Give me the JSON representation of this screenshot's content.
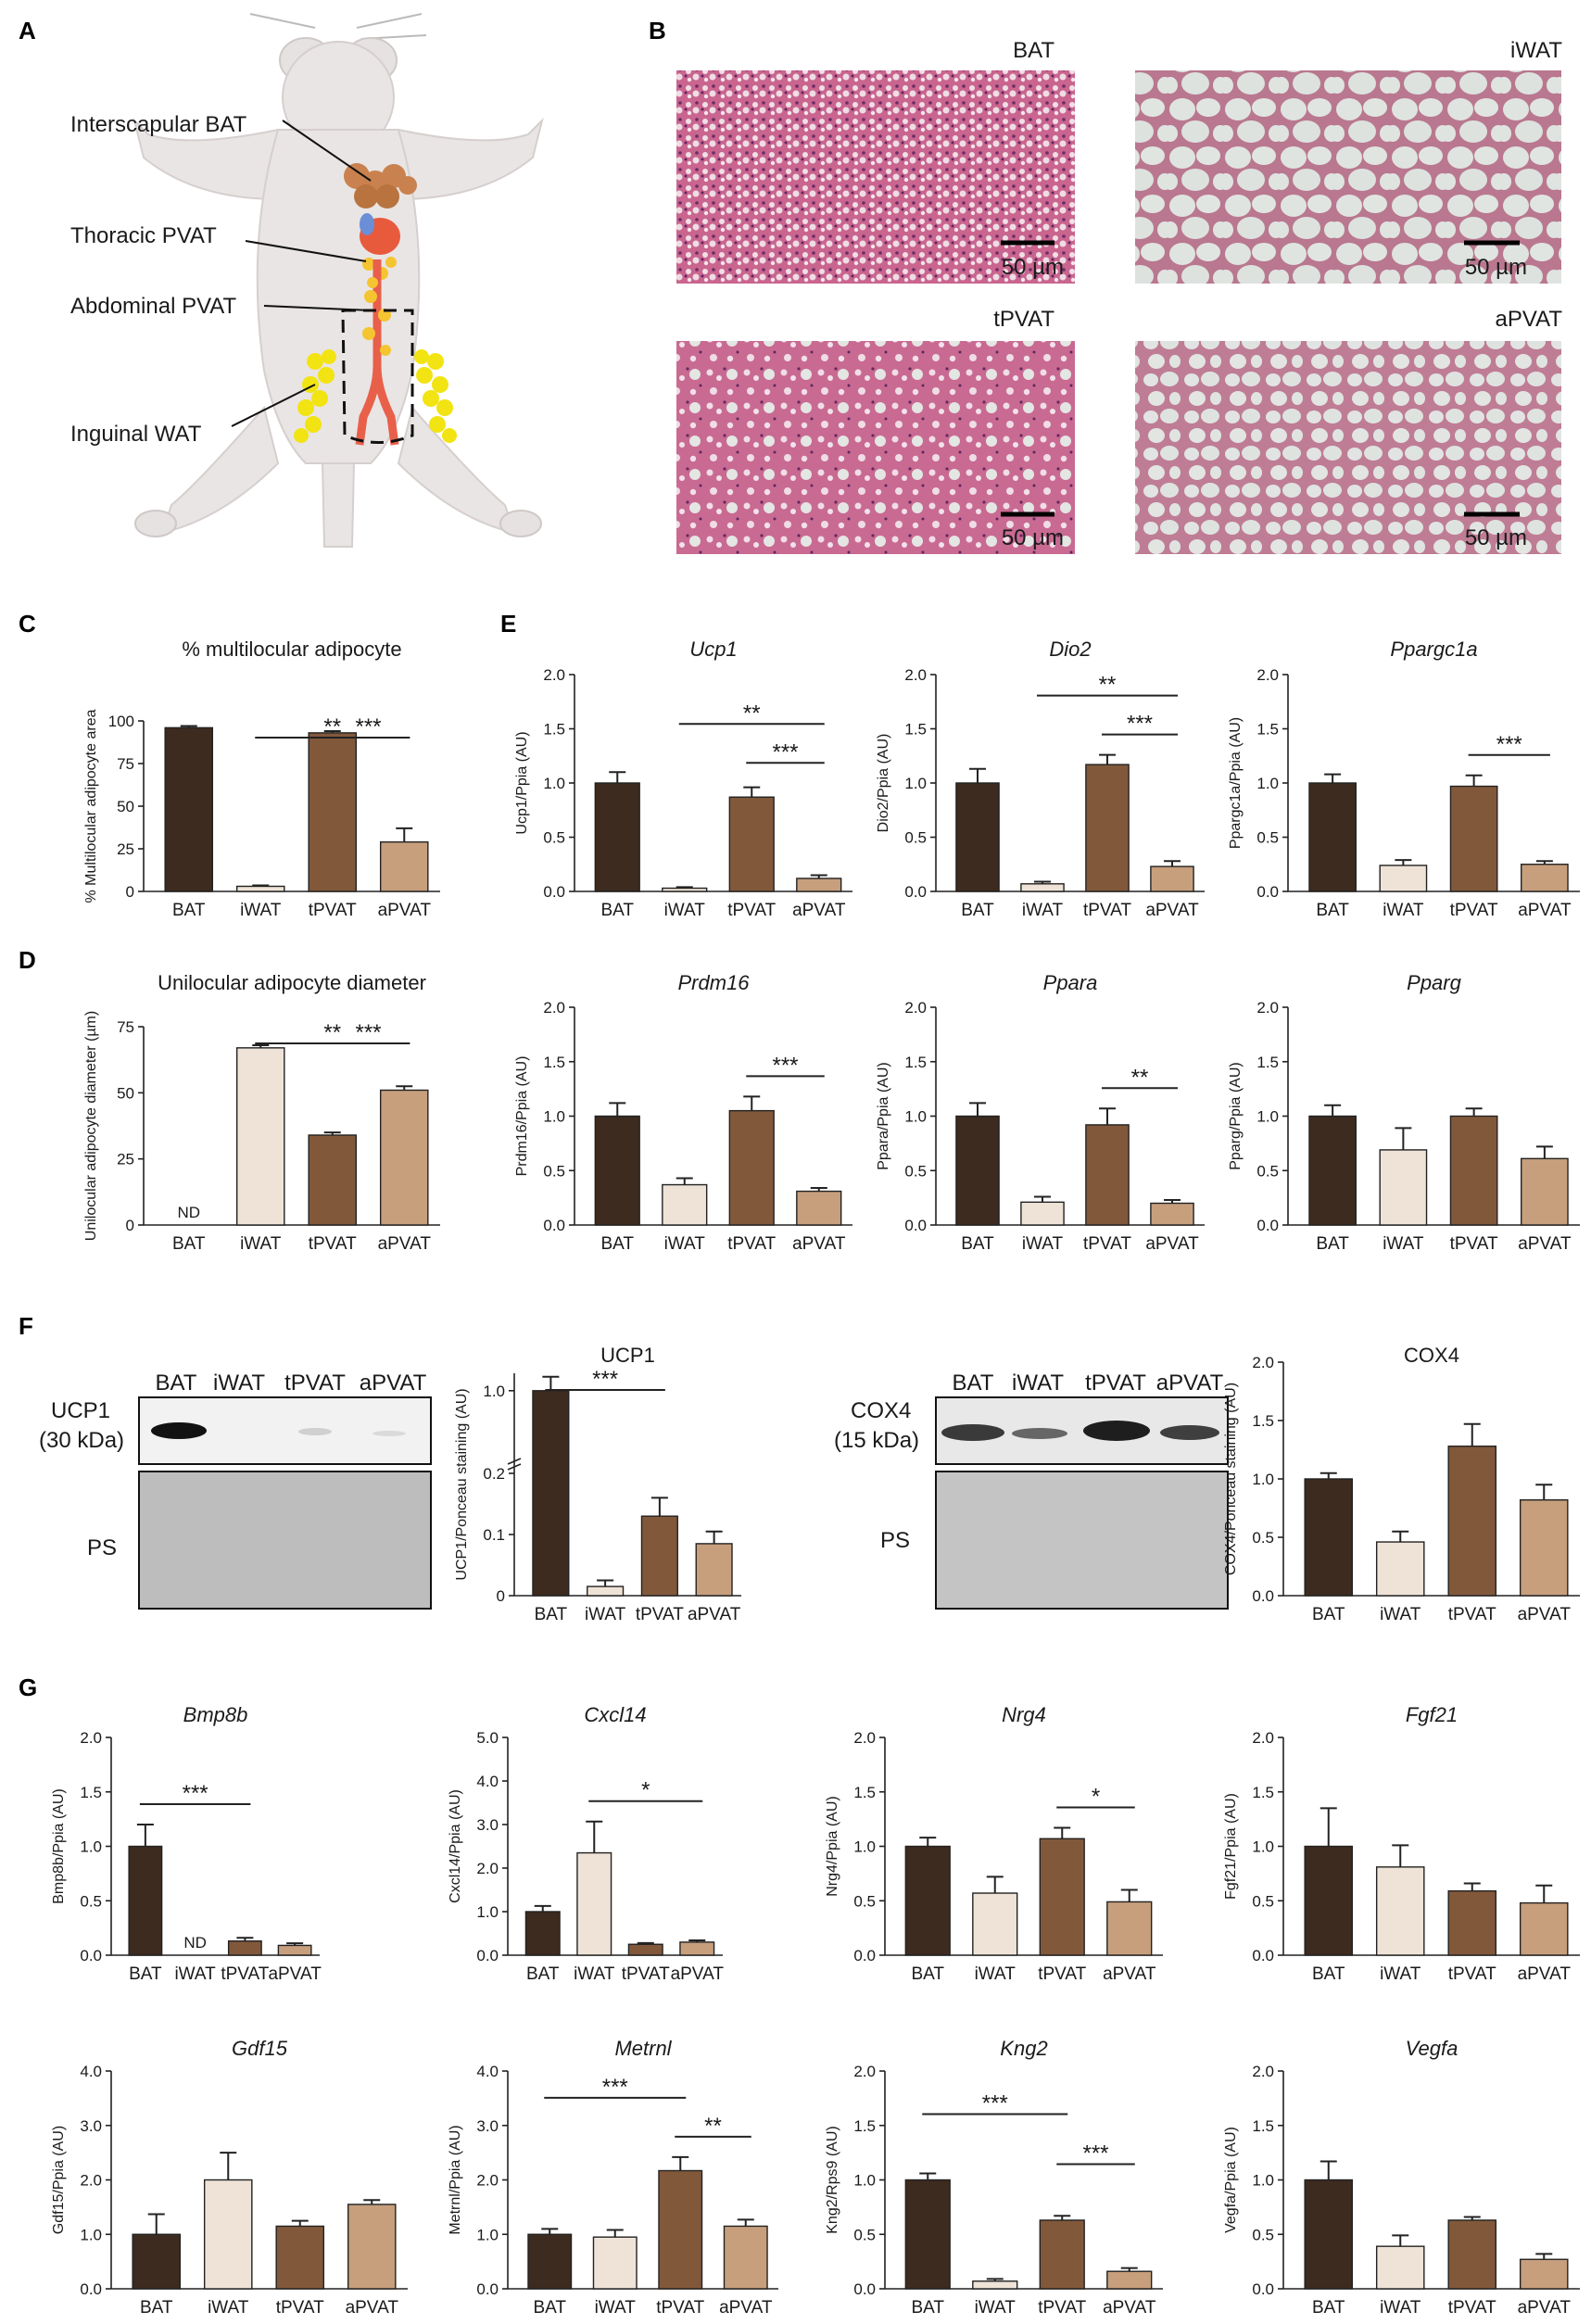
{
  "colors": {
    "BAT": "#3d2b1f",
    "iWAT": "#efe3d7",
    "tPVAT": "#82583b",
    "aPVAT": "#c79f7d"
  },
  "categories": [
    "BAT",
    "iWAT",
    "tPVAT",
    "aPVAT"
  ],
  "panels": {
    "A": {
      "letter": "A",
      "labels": [
        "Interscapular BAT",
        "Thoracic PVAT",
        "Abdominal PVAT",
        "Inguinal WAT"
      ]
    },
    "B": {
      "letter": "B",
      "images": [
        {
          "label": "BAT",
          "scale": "50 µm"
        },
        {
          "label": "iWAT",
          "scale": "50 µm"
        },
        {
          "label": "tPVAT",
          "scale": "50 µm"
        },
        {
          "label": "aPVAT",
          "scale": "50 µm"
        }
      ]
    },
    "C": {
      "letter": "C"
    },
    "D": {
      "letter": "D"
    },
    "E": {
      "letter": "E"
    },
    "F": {
      "letter": "F",
      "blot1": {
        "lanes": [
          "BAT",
          "iWAT",
          "tPVAT",
          "aPVAT"
        ],
        "protein": "UCP1",
        "kda": "(30 kDa)",
        "ps": "PS"
      },
      "blot2": {
        "lanes": [
          "BAT",
          "iWAT",
          "tPVAT",
          "aPVAT"
        ],
        "protein": "COX4",
        "kda": "(15 kDa)",
        "ps": "PS"
      }
    },
    "G": {
      "letter": "G"
    }
  },
  "chart_data": [
    {
      "id": "C",
      "type": "bar",
      "title": "% multilocular adipocyte",
      "title_italic": false,
      "ylabel": "% Multilocular adipocyte area",
      "ylim": [
        0,
        100
      ],
      "yticks": [
        0,
        25,
        50,
        75,
        100
      ],
      "ytick_labels": [
        "0",
        "25",
        "50",
        "75",
        "100"
      ],
      "categories": [
        "BAT",
        "iWAT",
        "tPVAT",
        "aPVAT"
      ],
      "values": [
        96,
        3,
        93,
        29
      ],
      "errors": [
        1,
        0.5,
        1,
        8
      ],
      "nd": [],
      "sig": [
        {
          "from": 1,
          "to": 3,
          "label": "**"
        },
        {
          "from": 2,
          "to": 3,
          "label": "***"
        }
      ]
    },
    {
      "id": "D",
      "type": "bar",
      "title": "Unilocular adipocyte diameter",
      "title_italic": false,
      "ylabel": "Unilocular adipocyte diameter (µm)",
      "ylim": [
        0,
        75
      ],
      "yticks": [
        0,
        25,
        50,
        75
      ],
      "ytick_labels": [
        "0",
        "25",
        "50",
        "75"
      ],
      "categories": [
        "BAT",
        "iWAT",
        "tPVAT",
        "aPVAT"
      ],
      "values": [
        0,
        67,
        34,
        51
      ],
      "errors": [
        0,
        1,
        1,
        1.5
      ],
      "nd": [
        0
      ],
      "nd_label": "ND",
      "sig": [
        {
          "from": 1,
          "to": 3,
          "label": "**"
        },
        {
          "from": 2,
          "to": 3,
          "label": "***"
        }
      ]
    },
    {
      "id": "E1",
      "type": "bar",
      "title": "Ucp1",
      "title_italic": true,
      "ylabel": "Ucp1/Ppia (AU)",
      "ylim": [
        0,
        2
      ],
      "yticks": [
        0,
        0.5,
        1,
        1.5,
        2
      ],
      "ytick_labels": [
        "0.0",
        "0.5",
        "1.0",
        "1.5",
        "2.0"
      ],
      "categories": [
        "BAT",
        "iWAT",
        "tPVAT",
        "aPVAT"
      ],
      "values": [
        1.0,
        0.03,
        0.87,
        0.12
      ],
      "errors": [
        0.1,
        0.01,
        0.09,
        0.03
      ],
      "nd": [],
      "sig": [
        {
          "from": 1,
          "to": 3,
          "label": "**"
        },
        {
          "from": 2,
          "to": 3,
          "label": "***"
        }
      ]
    },
    {
      "id": "E2",
      "type": "bar",
      "title": "Dio2",
      "title_italic": true,
      "ylabel": "Dio2/Ppia (AU)",
      "ylim": [
        0,
        2
      ],
      "yticks": [
        0,
        0.5,
        1,
        1.5,
        2
      ],
      "ytick_labels": [
        "0.0",
        "0.5",
        "1.0",
        "1.5",
        "2.0"
      ],
      "categories": [
        "BAT",
        "iWAT",
        "tPVAT",
        "aPVAT"
      ],
      "values": [
        1.0,
        0.07,
        1.17,
        0.23
      ],
      "errors": [
        0.13,
        0.02,
        0.09,
        0.05
      ],
      "nd": [],
      "sig": [
        {
          "from": 1,
          "to": 3,
          "label": "**"
        },
        {
          "from": 2,
          "to": 3,
          "label": "***"
        }
      ]
    },
    {
      "id": "E3",
      "type": "bar",
      "title": "Ppargc1a",
      "title_italic": true,
      "ylabel": "Ppargc1a/Ppia (AU)",
      "ylim": [
        0,
        2
      ],
      "yticks": [
        0,
        0.5,
        1,
        1.5,
        2
      ],
      "ytick_labels": [
        "0.0",
        "0.5",
        "1.0",
        "1.5",
        "2.0"
      ],
      "categories": [
        "BAT",
        "iWAT",
        "tPVAT",
        "aPVAT"
      ],
      "values": [
        1.0,
        0.24,
        0.97,
        0.25
      ],
      "errors": [
        0.08,
        0.05,
        0.1,
        0.03
      ],
      "nd": [],
      "sig": [
        {
          "from": 2,
          "to": 3,
          "label": "***"
        }
      ]
    },
    {
      "id": "E4",
      "type": "bar",
      "title": "Prdm16",
      "title_italic": true,
      "ylabel": "Prdm16/Ppia (AU)",
      "ylim": [
        0,
        2
      ],
      "yticks": [
        0,
        0.5,
        1,
        1.5,
        2
      ],
      "ytick_labels": [
        "0.0",
        "0.5",
        "1.0",
        "1.5",
        "2.0"
      ],
      "categories": [
        "BAT",
        "iWAT",
        "tPVAT",
        "aPVAT"
      ],
      "values": [
        1.0,
        0.37,
        1.05,
        0.31
      ],
      "errors": [
        0.12,
        0.06,
        0.13,
        0.03
      ],
      "nd": [],
      "sig": [
        {
          "from": 2,
          "to": 3,
          "label": "***"
        }
      ]
    },
    {
      "id": "E5",
      "type": "bar",
      "title": "Ppara",
      "title_italic": true,
      "ylabel": "Ppara/Ppia (AU)",
      "ylim": [
        0,
        2
      ],
      "yticks": [
        0,
        0.5,
        1,
        1.5,
        2
      ],
      "ytick_labels": [
        "0.0",
        "0.5",
        "1.0",
        "1.5",
        "2.0"
      ],
      "categories": [
        "BAT",
        "iWAT",
        "tPVAT",
        "aPVAT"
      ],
      "values": [
        1.0,
        0.21,
        0.92,
        0.2
      ],
      "errors": [
        0.12,
        0.05,
        0.15,
        0.03
      ],
      "nd": [],
      "sig": [
        {
          "from": 2,
          "to": 3,
          "label": "**"
        }
      ]
    },
    {
      "id": "E6",
      "type": "bar",
      "title": "Pparg",
      "title_italic": true,
      "ylabel": "Pparg/Ppia (AU)",
      "ylim": [
        0,
        2
      ],
      "yticks": [
        0,
        0.5,
        1,
        1.5,
        2
      ],
      "ytick_labels": [
        "0.0",
        "0.5",
        "1.0",
        "1.5",
        "2.0"
      ],
      "categories": [
        "BAT",
        "iWAT",
        "tPVAT",
        "aPVAT"
      ],
      "values": [
        1.0,
        0.69,
        1.0,
        0.61
      ],
      "errors": [
        0.1,
        0.2,
        0.07,
        0.11
      ],
      "nd": [],
      "sig": []
    },
    {
      "id": "F1",
      "type": "bar",
      "title": "UCP1",
      "title_italic": false,
      "ylabel": "UCP1/Ponceau staining (AU)",
      "ylim": [
        0,
        1.2
      ],
      "broken_axis": true,
      "yticks": [
        0,
        0.1,
        0.2,
        1.0
      ],
      "ytick_labels": [
        "0",
        "0.1",
        "0.2",
        "1.0"
      ],
      "categories": [
        "BAT",
        "iWAT",
        "tPVAT",
        "aPVAT"
      ],
      "values": [
        1.0,
        0.015,
        0.13,
        0.085
      ],
      "errors": [
        0.16,
        0.01,
        0.03,
        0.02
      ],
      "nd": [],
      "sig": [
        {
          "from": 0,
          "to": 2,
          "label": "***"
        }
      ]
    },
    {
      "id": "F2",
      "type": "bar",
      "title": "COX4",
      "title_italic": false,
      "ylabel": "COX4/Ponceau staining (AU)",
      "ylim": [
        0,
        2
      ],
      "yticks": [
        0,
        0.5,
        1,
        1.5,
        2
      ],
      "ytick_labels": [
        "0.0",
        "0.5",
        "1.0",
        "1.5",
        "2.0"
      ],
      "categories": [
        "BAT",
        "iWAT",
        "tPVAT",
        "aPVAT"
      ],
      "values": [
        1.0,
        0.46,
        1.28,
        0.82
      ],
      "errors": [
        0.05,
        0.09,
        0.19,
        0.13
      ],
      "nd": [],
      "sig": []
    },
    {
      "id": "G1",
      "type": "bar",
      "title": "Bmp8b",
      "title_italic": true,
      "ylabel": "Bmp8b/Ppia (AU)",
      "ylim": [
        0,
        2
      ],
      "yticks": [
        0,
        0.5,
        1,
        1.5,
        2
      ],
      "ytick_labels": [
        "0.0",
        "0.5",
        "1.0",
        "1.5",
        "2.0"
      ],
      "categories": [
        "BAT",
        "iWAT",
        "tPVAT",
        "aPVAT"
      ],
      "values": [
        1.0,
        0,
        0.13,
        0.09
      ],
      "errors": [
        0.2,
        0,
        0.03,
        0.02
      ],
      "nd": [
        1
      ],
      "nd_label": "ND",
      "sig": [
        {
          "from": 0,
          "to": 2,
          "label": "***"
        }
      ]
    },
    {
      "id": "G2",
      "type": "bar",
      "title": "Cxcl14",
      "title_italic": true,
      "ylabel": "Cxcl14/Ppia (AU)",
      "ylim": [
        0,
        5
      ],
      "yticks": [
        0,
        1,
        2,
        3,
        4,
        5
      ],
      "ytick_labels": [
        "0.0",
        "1.0",
        "2.0",
        "3.0",
        "4.0",
        "5.0"
      ],
      "categories": [
        "BAT",
        "iWAT",
        "tPVAT",
        "aPVAT"
      ],
      "values": [
        1.0,
        2.35,
        0.25,
        0.3
      ],
      "errors": [
        0.13,
        0.72,
        0.03,
        0.04
      ],
      "nd": [],
      "sig": [
        {
          "from": 1,
          "to": 3,
          "label": "*"
        }
      ]
    },
    {
      "id": "G3",
      "type": "bar",
      "title": "Nrg4",
      "title_italic": true,
      "ylabel": "Nrg4/Ppia (AU)",
      "ylim": [
        0,
        2
      ],
      "yticks": [
        0,
        0.5,
        1,
        1.5,
        2
      ],
      "ytick_labels": [
        "0.0",
        "0.5",
        "1.0",
        "1.5",
        "2.0"
      ],
      "categories": [
        "BAT",
        "iWAT",
        "tPVAT",
        "aPVAT"
      ],
      "values": [
        1.0,
        0.57,
        1.07,
        0.49
      ],
      "errors": [
        0.08,
        0.15,
        0.1,
        0.11
      ],
      "nd": [],
      "sig": [
        {
          "from": 2,
          "to": 3,
          "label": "*"
        }
      ]
    },
    {
      "id": "G4",
      "type": "bar",
      "title": "Fgf21",
      "title_italic": true,
      "ylabel": "Fgf21/Ppia (AU)",
      "ylim": [
        0,
        2
      ],
      "yticks": [
        0,
        0.5,
        1,
        1.5,
        2
      ],
      "ytick_labels": [
        "0.0",
        "0.5",
        "1.0",
        "1.5",
        "2.0"
      ],
      "categories": [
        "BAT",
        "iWAT",
        "tPVAT",
        "aPVAT"
      ],
      "values": [
        1.0,
        0.81,
        0.59,
        0.48
      ],
      "errors": [
        0.35,
        0.2,
        0.07,
        0.16
      ],
      "nd": [],
      "sig": []
    },
    {
      "id": "G5",
      "type": "bar",
      "title": "Gdf15",
      "title_italic": true,
      "ylabel": "Gdf15/Ppia (AU)",
      "ylim": [
        0,
        4
      ],
      "yticks": [
        0,
        1,
        2,
        3,
        4
      ],
      "ytick_labels": [
        "0.0",
        "1.0",
        "2.0",
        "3.0",
        "4.0"
      ],
      "categories": [
        "BAT",
        "iWAT",
        "tPVAT",
        "aPVAT"
      ],
      "values": [
        1.0,
        2.0,
        1.15,
        1.55
      ],
      "errors": [
        0.37,
        0.5,
        0.1,
        0.08
      ],
      "nd": [],
      "sig": []
    },
    {
      "id": "G6",
      "type": "bar",
      "title": "Metrnl",
      "title_italic": true,
      "ylabel": "Metrnl/Ppia (AU)",
      "ylim": [
        0,
        4
      ],
      "yticks": [
        0,
        1,
        2,
        3,
        4
      ],
      "ytick_labels": [
        "0.0",
        "1.0",
        "2.0",
        "3.0",
        "4.0"
      ],
      "categories": [
        "BAT",
        "iWAT",
        "tPVAT",
        "aPVAT"
      ],
      "values": [
        1.0,
        0.95,
        2.17,
        1.15
      ],
      "errors": [
        0.1,
        0.13,
        0.25,
        0.12
      ],
      "nd": [],
      "sig": [
        {
          "from": 0,
          "to": 2,
          "label": "***"
        },
        {
          "from": 2,
          "to": 3,
          "label": "**"
        }
      ]
    },
    {
      "id": "G7",
      "type": "bar",
      "title": "Kng2",
      "title_italic": true,
      "ylabel": "Kng2/Rps9 (AU)",
      "ylim": [
        0,
        2
      ],
      "yticks": [
        0,
        0.5,
        1,
        1.5,
        2
      ],
      "ytick_labels": [
        "0.0",
        "0.5",
        "1.0",
        "1.5",
        "2.0"
      ],
      "categories": [
        "BAT",
        "iWAT",
        "tPVAT",
        "aPVAT"
      ],
      "values": [
        1.0,
        0.07,
        0.63,
        0.16
      ],
      "errors": [
        0.06,
        0.02,
        0.04,
        0.03
      ],
      "nd": [],
      "sig": [
        {
          "from": 0,
          "to": 2,
          "label": "***"
        },
        {
          "from": 2,
          "to": 3,
          "label": "***"
        }
      ]
    },
    {
      "id": "G8",
      "type": "bar",
      "title": "Vegfa",
      "title_italic": true,
      "ylabel": "Vegfa/Ppia (AU)",
      "ylim": [
        0,
        2
      ],
      "yticks": [
        0,
        0.5,
        1,
        1.5,
        2
      ],
      "ytick_labels": [
        "0.0",
        "0.5",
        "1.0",
        "1.5",
        "2.0"
      ],
      "categories": [
        "BAT",
        "iWAT",
        "tPVAT",
        "aPVAT"
      ],
      "values": [
        1.0,
        0.39,
        0.63,
        0.27
      ],
      "errors": [
        0.17,
        0.1,
        0.03,
        0.05
      ],
      "nd": [],
      "sig": []
    }
  ]
}
